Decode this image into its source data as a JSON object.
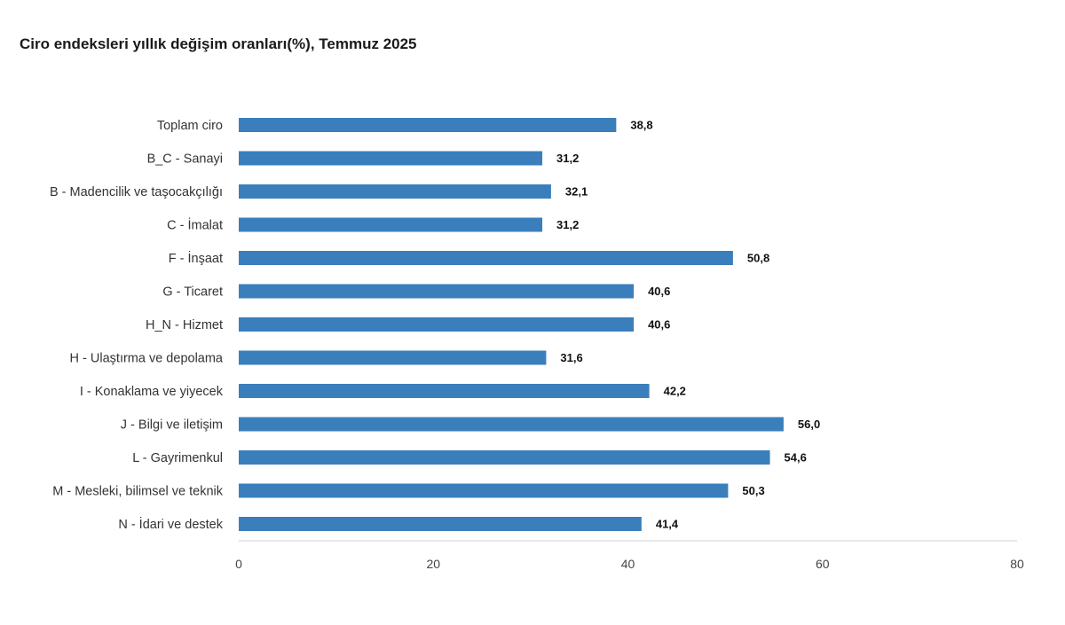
{
  "chart_data": {
    "type": "bar",
    "orientation": "horizontal",
    "title": "Ciro endeksleri yıllık değişim oranları(%), Temmuz 2025",
    "categories": [
      "Toplam ciro",
      "B_C - Sanayi",
      "B - Madencilik ve taşocakçılığı",
      "C - İmalat",
      "F - İnşaat",
      "G - Ticaret",
      "H_N - Hizmet",
      "H - Ulaştırma ve depolama",
      "I - Konaklama ve yiyecek",
      "J - Bilgi ve iletişim",
      "L - Gayrimenkul",
      "M - Mesleki, bilimsel ve teknik",
      "N - İdari ve destek"
    ],
    "values": [
      38.8,
      31.2,
      32.1,
      31.2,
      50.8,
      40.6,
      40.6,
      31.6,
      42.2,
      56.0,
      54.6,
      50.3,
      41.4
    ],
    "value_labels": [
      "38,8",
      "31,2",
      "32,1",
      "31,2",
      "50,8",
      "40,6",
      "40,6",
      "31,6",
      "42,2",
      "56,0",
      "54,6",
      "50,3",
      "41,4"
    ],
    "xlim": [
      0,
      80
    ],
    "xticks": [
      0,
      20,
      40,
      60,
      80
    ],
    "xtick_labels": [
      "0",
      "20",
      "40",
      "60",
      "80"
    ],
    "grid": false,
    "legend": "none",
    "bar_color": "#3a7fbb"
  }
}
